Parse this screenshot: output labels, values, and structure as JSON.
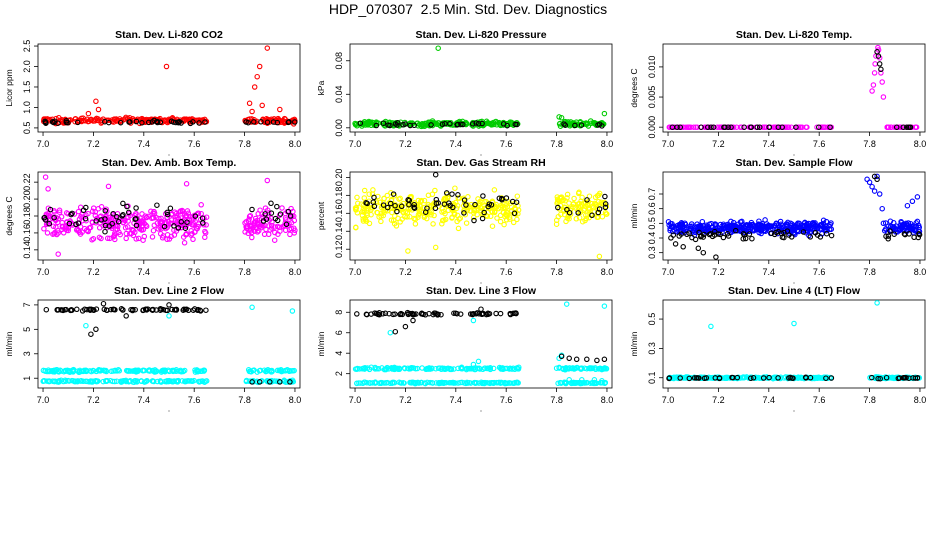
{
  "title": "HDP_070307  2.5 Min. Std. Dev. Diagnostics",
  "colors": {
    "overlay": "#000000",
    "axis": "#000000"
  },
  "chart_data": [
    {
      "type": "scatter",
      "title": "Stan. Dev. Li-820 CO2",
      "ylabel": "Licor ppm",
      "xlim": [
        6.98,
        8.02
      ],
      "ylim": [
        0.4,
        2.55
      ],
      "xticks": [
        "7.0",
        "7.2",
        "7.4",
        "7.6",
        "7.8",
        "8.0"
      ],
      "yticks": [
        "0.5",
        "1.0",
        "1.5",
        "2.0",
        "2.5"
      ],
      "series": [
        {
          "name": "main",
          "color": "#ff0000",
          "gen": {
            "segments": [
              [
                7.0,
                7.65
              ],
              [
                7.8,
                8.0
              ]
            ],
            "n": 260,
            "base": 0.68,
            "spread": 0.09
          },
          "extra": [
            [
              7.21,
              1.15
            ],
            [
              7.22,
              0.95
            ],
            [
              7.18,
              0.85
            ],
            [
              7.49,
              2.0
            ],
            [
              7.82,
              1.1
            ],
            [
              7.84,
              1.5
            ],
            [
              7.85,
              1.75
            ],
            [
              7.86,
              2.0
            ],
            [
              7.87,
              1.05
            ],
            [
              7.89,
              2.45
            ],
            [
              7.83,
              0.9
            ],
            [
              7.94,
              0.95
            ]
          ]
        },
        {
          "name": "overlay",
          "color": "#000000",
          "gen": {
            "segments": [
              [
                7.0,
                7.65
              ],
              [
                7.8,
                8.0
              ]
            ],
            "n": 45,
            "base": 0.64,
            "spread": 0.05
          },
          "extra": []
        }
      ]
    },
    {
      "type": "scatter",
      "title": "Stan. Dev. Li-820 Pressure",
      "ylabel": "kPa",
      "xlim": [
        6.98,
        8.02
      ],
      "ylim": [
        -0.005,
        0.1
      ],
      "xticks": [
        "7.0",
        "7.2",
        "7.4",
        "7.6",
        "7.8",
        "8.0"
      ],
      "yticks": [
        "0.00",
        "0.04",
        "0.08"
      ],
      "series": [
        {
          "name": "main",
          "color": "#00cc00",
          "gen": {
            "segments": [
              [
                7.0,
                7.65
              ],
              [
                7.8,
                8.0
              ]
            ],
            "n": 260,
            "base": 0.005,
            "spread": 0.004
          },
          "extra": [
            [
              7.33,
              0.095
            ],
            [
              7.81,
              0.013
            ],
            [
              7.82,
              0.012
            ],
            [
              7.99,
              0.017
            ]
          ]
        },
        {
          "name": "overlay",
          "color": "#000000",
          "gen": {
            "segments": [
              [
                7.0,
                7.65
              ],
              [
                7.8,
                8.0
              ]
            ],
            "n": 35,
            "base": 0.004,
            "spread": 0.003
          },
          "extra": []
        }
      ]
    },
    {
      "type": "scatter",
      "title": "Stan. Dev. Li-820 Temp.",
      "ylabel": "degrees C",
      "xlim": [
        6.98,
        8.02
      ],
      "ylim": [
        -0.0008,
        0.0138
      ],
      "xticks": [
        "7.0",
        "7.2",
        "7.4",
        "7.6",
        "7.8",
        "8.0"
      ],
      "yticks": [
        "0.000",
        "0.005",
        "0.010"
      ],
      "series": [
        {
          "name": "main",
          "color": "#ff00ff",
          "gen": {
            "segments": [
              [
                7.0,
                7.65
              ],
              [
                7.85,
                8.0
              ]
            ],
            "n": 140,
            "base": 0.0,
            "spread": 0.0
          },
          "extra": [
            [
              7.81,
              0.006
            ],
            [
              7.815,
              0.007
            ],
            [
              7.82,
              0.009
            ],
            [
              7.822,
              0.0105
            ],
            [
              7.825,
              0.0118
            ],
            [
              7.83,
              0.0125
            ],
            [
              7.833,
              0.0132
            ],
            [
              7.836,
              0.0128
            ],
            [
              7.84,
              0.0115
            ],
            [
              7.845,
              0.009
            ],
            [
              7.85,
              0.0075
            ],
            [
              7.855,
              0.005
            ]
          ]
        },
        {
          "name": "overlay",
          "color": "#000000",
          "gen": {
            "segments": [
              [
                7.0,
                7.65
              ],
              [
                7.85,
                8.0
              ]
            ],
            "n": 30,
            "base": 0.0,
            "spread": 0.0
          },
          "extra": [
            [
              7.83,
              0.0125
            ],
            [
              7.835,
              0.0118
            ],
            [
              7.84,
              0.0105
            ],
            [
              7.845,
              0.0096
            ]
          ]
        }
      ]
    },
    {
      "type": "scatter",
      "title": "Stan. Dev. Amb. Box Temp.",
      "ylabel": "degrees C",
      "xlim": [
        6.98,
        8.02
      ],
      "ylim": [
        0.128,
        0.232
      ],
      "xticks": [
        "7.0",
        "7.2",
        "7.4",
        "7.6",
        "7.8",
        "8.0"
      ],
      "yticks": [
        "0.14",
        "0.16",
        "0.18",
        "0.20",
        "0.22"
      ],
      "series": [
        {
          "name": "main",
          "color": "#ff00ff",
          "gen": {
            "segments": [
              [
                7.0,
                7.65
              ],
              [
                7.8,
                8.0
              ]
            ],
            "n": 420,
            "base": 0.172,
            "spread": 0.026
          },
          "extra": [
            [
              7.01,
              0.226
            ],
            [
              7.02,
              0.212
            ],
            [
              7.06,
              0.135
            ],
            [
              7.26,
              0.215
            ],
            [
              7.57,
              0.218
            ],
            [
              7.89,
              0.222
            ]
          ]
        },
        {
          "name": "overlay",
          "color": "#000000",
          "gen": {
            "segments": [
              [
                7.0,
                7.65
              ],
              [
                7.8,
                8.0
              ]
            ],
            "n": 60,
            "base": 0.178,
            "spread": 0.024
          },
          "extra": []
        }
      ]
    },
    {
      "type": "scatter",
      "title": "Stan. Dev. Gas Stream RH",
      "ylabel": "percent",
      "xlim": [
        6.98,
        8.02
      ],
      "ylim": [
        0.108,
        0.206
      ],
      "xticks": [
        "7.0",
        "7.2",
        "7.4",
        "7.6",
        "7.8",
        "8.0"
      ],
      "yticks": [
        "0.12",
        "0.14",
        "0.16",
        "0.18",
        "0.20"
      ],
      "series": [
        {
          "name": "main",
          "color": "#ffff00",
          "gen": {
            "segments": [
              [
                7.0,
                7.65
              ],
              [
                7.8,
                8.0
              ]
            ],
            "n": 420,
            "base": 0.165,
            "spread": 0.025
          },
          "extra": [
            [
              7.21,
              0.118
            ],
            [
              7.32,
              0.122
            ],
            [
              7.97,
              0.112
            ]
          ]
        },
        {
          "name": "overlay",
          "color": "#000000",
          "gen": {
            "segments": [
              [
                7.0,
                7.65
              ],
              [
                7.8,
                8.0
              ]
            ],
            "n": 60,
            "base": 0.168,
            "spread": 0.022
          },
          "extra": [
            [
              7.32,
              0.203
            ]
          ]
        }
      ]
    },
    {
      "type": "scatter",
      "title": "Stan. Dev. Sample Flow",
      "ylabel": "ml/min",
      "xlim": [
        6.98,
        8.02
      ],
      "ylim": [
        0.25,
        0.85
      ],
      "xticks": [
        "7.0",
        "7.2",
        "7.4",
        "7.6",
        "7.8",
        "8.0"
      ],
      "yticks": [
        "0.3",
        "0.4",
        "0.5",
        "0.6",
        "0.7"
      ],
      "series": [
        {
          "name": "main",
          "color": "#0000ff",
          "gen": {
            "segments": [
              [
                7.0,
                7.65
              ],
              [
                7.86,
                8.0
              ]
            ],
            "n": 420,
            "base": 0.47,
            "spread": 0.06
          },
          "extra": [
            [
              7.79,
              0.8
            ],
            [
              7.8,
              0.78
            ],
            [
              7.81,
              0.75
            ],
            [
              7.82,
              0.72
            ],
            [
              7.83,
              0.82
            ],
            [
              7.84,
              0.7
            ],
            [
              7.85,
              0.6
            ],
            [
              7.855,
              0.5
            ],
            [
              7.86,
              0.45
            ],
            [
              7.95,
              0.62
            ],
            [
              7.97,
              0.65
            ],
            [
              7.99,
              0.68
            ]
          ]
        },
        {
          "name": "overlay",
          "color": "#000000",
          "gen": {
            "segments": [
              [
                7.0,
                7.65
              ],
              [
                7.86,
                8.0
              ]
            ],
            "n": 60,
            "base": 0.42,
            "spread": 0.04
          },
          "extra": [
            [
              7.03,
              0.36
            ],
            [
              7.06,
              0.34
            ],
            [
              7.12,
              0.33
            ],
            [
              7.14,
              0.3
            ],
            [
              7.19,
              0.27
            ],
            [
              7.82,
              0.82
            ],
            [
              7.83,
              0.8
            ]
          ]
        }
      ]
    },
    {
      "type": "scatter",
      "title": "Stan. Dev. Line 2 Flow",
      "ylabel": "ml/min",
      "xlim": [
        6.98,
        8.02
      ],
      "ylim": [
        0.2,
        7.4
      ],
      "xticks": [
        "7.0",
        "7.2",
        "7.4",
        "7.6",
        "7.8",
        "8.0"
      ],
      "yticks": [
        "1",
        "3",
        "5",
        "7"
      ],
      "series": [
        {
          "name": "main",
          "color": "#00ffff",
          "bands": [
            {
              "base": 1.6,
              "spread": 0.15,
              "n": 180
            },
            {
              "base": 0.75,
              "spread": 0.1,
              "n": 180
            }
          ],
          "gen": {
            "segments": [
              [
                7.0,
                7.65
              ],
              [
                7.8,
                8.0
              ]
            ],
            "n": 0,
            "base": 0,
            "spread": 0
          },
          "extra": [
            [
              7.17,
              5.3
            ],
            [
              7.5,
              6.1
            ],
            [
              7.83,
              6.8
            ],
            [
              7.99,
              6.5
            ]
          ]
        },
        {
          "name": "overlay",
          "color": "#000000",
          "gen": {
            "segments": [
              [
                7.0,
                7.65
              ]
            ],
            "n": 70,
            "base": 6.6,
            "spread": 0.12
          },
          "extra": [
            [
              7.19,
              4.6
            ],
            [
              7.21,
              5.0
            ],
            [
              7.24,
              7.1
            ],
            [
              7.5,
              7.0
            ],
            [
              7.33,
              6.1
            ],
            [
              7.83,
              0.7
            ],
            [
              7.86,
              0.7
            ],
            [
              7.9,
              0.7
            ],
            [
              7.94,
              0.7
            ],
            [
              7.98,
              0.7
            ]
          ]
        }
      ]
    },
    {
      "type": "scatter",
      "title": "Stan. Dev. Line 3 Flow",
      "ylabel": "ml/min",
      "xlim": [
        6.98,
        8.02
      ],
      "ylim": [
        0.6,
        9.2
      ],
      "xticks": [
        "7.0",
        "7.2",
        "7.4",
        "7.6",
        "7.8",
        "8.0"
      ],
      "yticks": [
        "2",
        "4",
        "6",
        "8"
      ],
      "series": [
        {
          "name": "main",
          "color": "#00ffff",
          "bands": [
            {
              "base": 2.5,
              "spread": 0.15,
              "n": 180
            },
            {
              "base": 1.1,
              "spread": 0.1,
              "n": 180
            }
          ],
          "gen": {
            "segments": [
              [
                7.0,
                7.65
              ],
              [
                7.8,
                8.0
              ]
            ],
            "n": 0,
            "base": 0,
            "spread": 0
          },
          "extra": [
            [
              7.49,
              3.2
            ],
            [
              7.47,
              2.9
            ],
            [
              7.14,
              6.0
            ],
            [
              7.47,
              7.2
            ],
            [
              7.84,
              8.8
            ],
            [
              7.99,
              8.6
            ],
            [
              7.81,
              3.5
            ],
            [
              7.82,
              3.8
            ],
            [
              7.85,
              1.4
            ],
            [
              7.9,
              1.4
            ],
            [
              7.95,
              1.4
            ],
            [
              7.98,
              1.3
            ]
          ]
        },
        {
          "name": "overlay",
          "color": "#000000",
          "gen": {
            "segments": [
              [
                7.0,
                7.65
              ]
            ],
            "n": 70,
            "base": 7.85,
            "spread": 0.15
          },
          "extra": [
            [
              7.16,
              6.1
            ],
            [
              7.2,
              6.6
            ],
            [
              7.23,
              7.2
            ],
            [
              7.5,
              8.3
            ],
            [
              7.82,
              3.7
            ],
            [
              7.85,
              3.5
            ],
            [
              7.88,
              3.4
            ],
            [
              7.92,
              3.4
            ],
            [
              7.96,
              3.3
            ],
            [
              7.99,
              3.4
            ]
          ]
        }
      ]
    },
    {
      "type": "scatter",
      "title": "Stan. Dev. Line 4 (LT) Flow",
      "ylabel": "ml/min",
      "xlim": [
        6.98,
        8.02
      ],
      "ylim": [
        0.03,
        0.63
      ],
      "xticks": [
        "7.0",
        "7.2",
        "7.4",
        "7.6",
        "7.8",
        "8.0"
      ],
      "yticks": [
        "0.1",
        "0.3",
        "0.5"
      ],
      "series": [
        {
          "name": "main",
          "color": "#00ffff",
          "gen": {
            "segments": [
              [
                7.0,
                7.65
              ],
              [
                7.8,
                8.0
              ]
            ],
            "n": 320,
            "base": 0.1,
            "spread": 0.008
          },
          "extra": [
            [
              7.17,
              0.45
            ],
            [
              7.5,
              0.47
            ],
            [
              7.83,
              0.61
            ]
          ]
        },
        {
          "name": "overlay",
          "color": "#000000",
          "gen": {
            "segments": [
              [
                7.0,
                7.65
              ],
              [
                7.8,
                8.0
              ]
            ],
            "n": 45,
            "base": 0.098,
            "spread": 0.006
          },
          "extra": []
        }
      ]
    }
  ]
}
